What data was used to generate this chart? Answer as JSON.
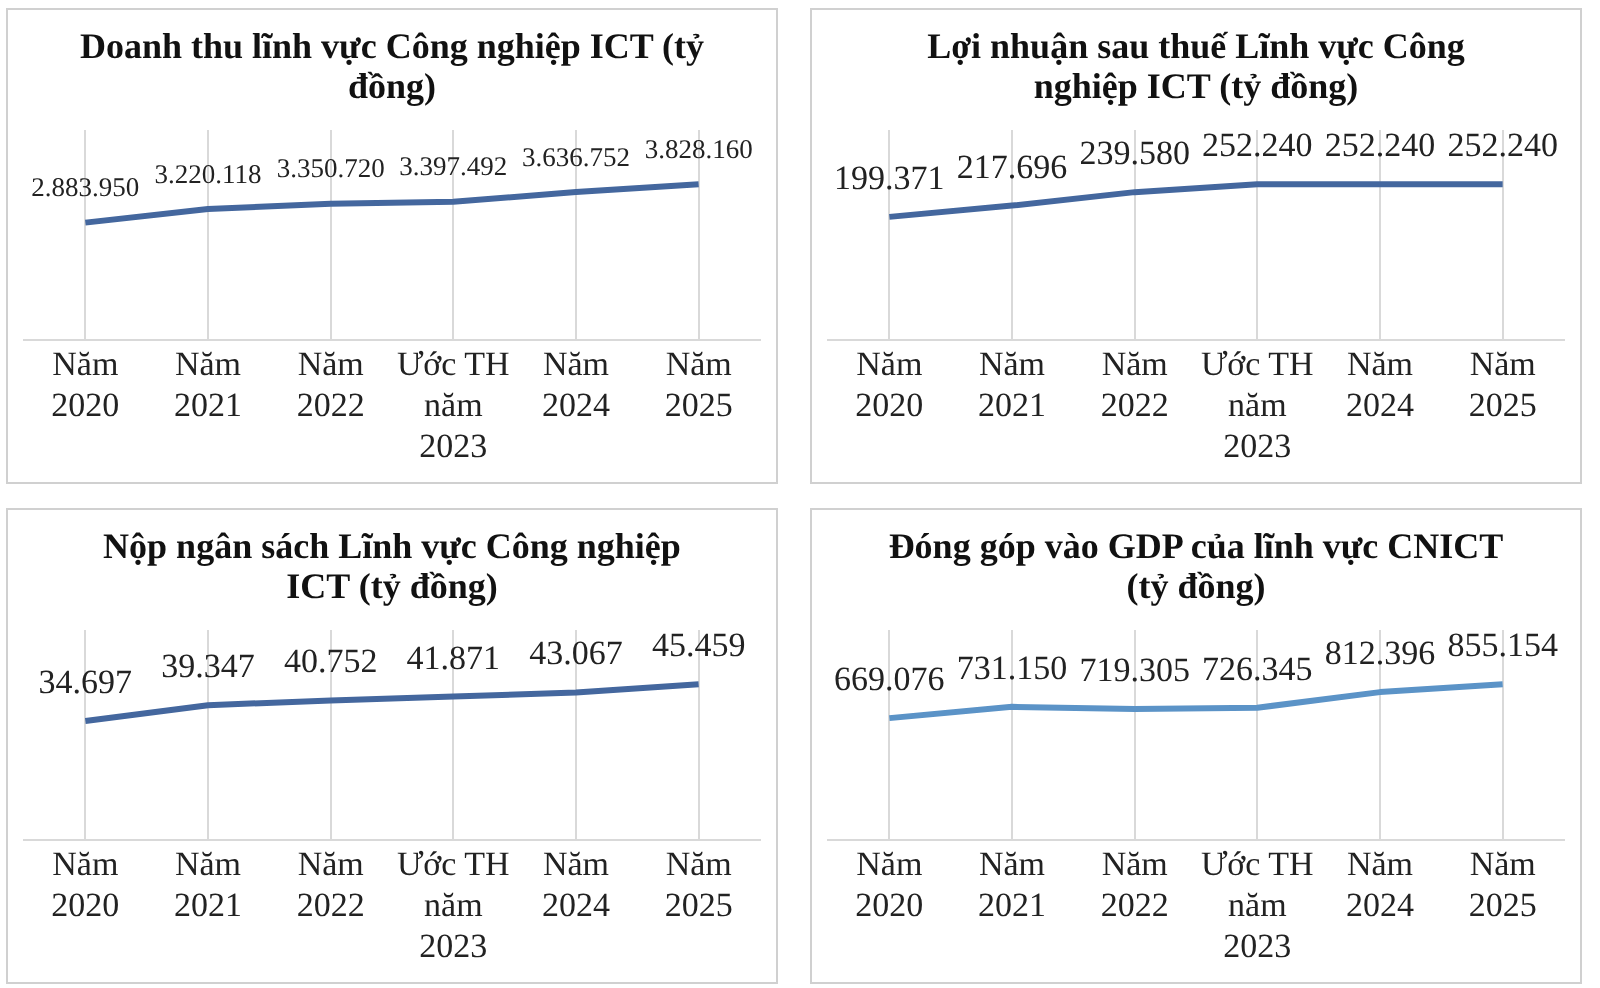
{
  "chart_data": [
    {
      "type": "line",
      "title": "Doanh thu lĩnh vực Công nghiệp ICT (tỷ đồng)",
      "categories": [
        "Năm 2020",
        "Năm 2021",
        "Năm 2022",
        "Ước TH năm 2023",
        "Năm 2024",
        "Năm 2025"
      ],
      "values": [
        2883950,
        3220118,
        3350720,
        3397492,
        3636752,
        3828160
      ],
      "value_labels": [
        "2.883.950",
        "3.220.118",
        "3.350.720",
        "3.397.492",
        "3.636.752",
        "3.828.160"
      ],
      "color": "#44679e",
      "grid": "x",
      "legend": false,
      "tick_labels": "x",
      "marker": "none"
    },
    {
      "type": "line",
      "title": "Lợi nhuận sau thuế Lĩnh vực Công nghiệp ICT (tỷ đồng)",
      "categories": [
        "Năm 2020",
        "Năm 2021",
        "Năm 2022",
        "Ước TH năm 2023",
        "Năm 2024",
        "Năm 2025"
      ],
      "values": [
        199371,
        217696,
        239580,
        252240,
        252240,
        252240
      ],
      "value_labels": [
        "199.371",
        "217.696",
        "239.580",
        "252.240",
        "252.240",
        "252.240"
      ],
      "color": "#44679e",
      "grid": "x",
      "legend": false,
      "tick_labels": "x",
      "marker": "none"
    },
    {
      "type": "line",
      "title": "Nộp ngân sách Lĩnh vực Công nghiệp ICT (tỷ đồng)",
      "categories": [
        "Năm 2020",
        "Năm 2021",
        "Năm 2022",
        "Ước TH năm 2023",
        "Năm 2024",
        "Năm 2025"
      ],
      "values": [
        34697,
        39347,
        40752,
        41871,
        43067,
        45459
      ],
      "value_labels": [
        "34.697",
        "39.347",
        "40.752",
        "41.871",
        "43.067",
        "45.459"
      ],
      "color": "#44679e",
      "grid": "x",
      "legend": false,
      "tick_labels": "x",
      "marker": "none"
    },
    {
      "type": "line",
      "title": "Đóng góp vào GDP của lĩnh vực CNICT (tỷ đồng)",
      "categories": [
        "Năm 2020",
        "Năm 2021",
        "Năm 2022",
        "Ước TH năm 2023",
        "Năm 2024",
        "Năm 2025"
      ],
      "values": [
        669076,
        731150,
        719305,
        726345,
        812396,
        855154
      ],
      "value_labels": [
        "669.076",
        "731.150",
        "719.305",
        "726.345",
        "812.396",
        "855.154"
      ],
      "color": "#5b93c7",
      "grid": "x",
      "legend": false,
      "tick_labels": "x",
      "marker": "none"
    }
  ]
}
